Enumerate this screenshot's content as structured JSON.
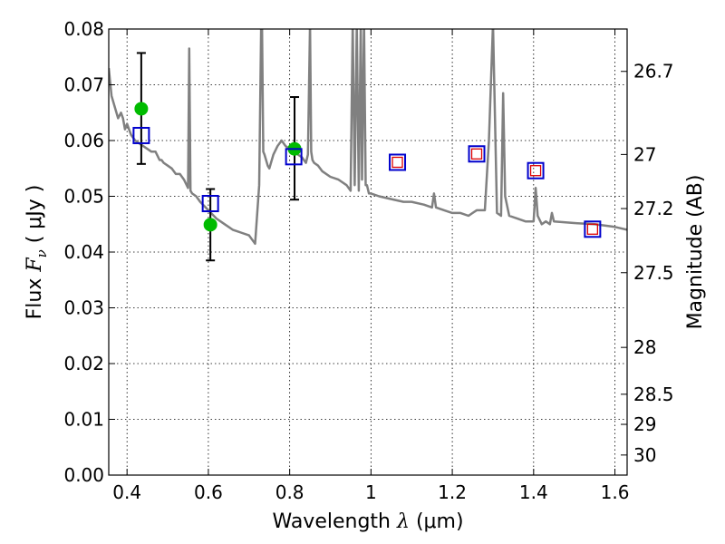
{
  "chart_data": {
    "type": "line",
    "xlabel_text": "Wavelength",
    "xlabel_symbol": "λ",
    "xlabel_unit": "(μm)",
    "ylabel_text": "Flux",
    "ylabel_symbol": "F",
    "ylabel_subscript": "ν",
    "ylabel_unit": "( μJy )",
    "ylabel_right": "Magnitude (AB)",
    "xlim": [
      0.355,
      1.63
    ],
    "ylim": [
      0.0,
      0.08
    ],
    "grid": true,
    "x_ticks": [
      0.4,
      0.6,
      0.8,
      1.0,
      1.2,
      1.4,
      1.6
    ],
    "x_tick_labels": [
      "0.4",
      "0.6",
      "0.8",
      "1",
      "1.2",
      "1.4",
      "1.6"
    ],
    "y_ticks": [
      0.0,
      0.01,
      0.02,
      0.03,
      0.04,
      0.05,
      0.06,
      0.07,
      0.08
    ],
    "y_tick_labels": [
      "0.00",
      "0.01",
      "0.02",
      "0.03",
      "0.04",
      "0.05",
      "0.06",
      "0.07",
      "0.08"
    ],
    "right_ticks": [
      {
        "flux": 0.0724,
        "label": "26.7"
      },
      {
        "flux": 0.0575,
        "label": "27"
      },
      {
        "flux": 0.0478,
        "label": "27.2"
      },
      {
        "flux": 0.0363,
        "label": "27.5"
      },
      {
        "flux": 0.0229,
        "label": "28"
      },
      {
        "flux": 0.0145,
        "label": "28.5"
      },
      {
        "flux": 0.0091,
        "label": "29"
      },
      {
        "flux": 0.0036,
        "label": "30"
      }
    ],
    "colors": {
      "sed": "#808080",
      "observed": "#00bb00",
      "model_box": "#0000cc",
      "model_inner": "#dd0000",
      "error": "#000000"
    },
    "series": [
      {
        "kind": "sed",
        "x": [
          0.355,
          0.362,
          0.37,
          0.378,
          0.385,
          0.39,
          0.395,
          0.4,
          0.405,
          0.41,
          0.42,
          0.43,
          0.44,
          0.45,
          0.46,
          0.47,
          0.48,
          0.485,
          0.49,
          0.5,
          0.51,
          0.52,
          0.53,
          0.54,
          0.55,
          0.553,
          0.556,
          0.56,
          0.57,
          0.58,
          0.6,
          0.62,
          0.64,
          0.66,
          0.68,
          0.7,
          0.715,
          0.725,
          0.73,
          0.732,
          0.735,
          0.738,
          0.742,
          0.746,
          0.75,
          0.76,
          0.77,
          0.78,
          0.79,
          0.8,
          0.81,
          0.82,
          0.83,
          0.84,
          0.845,
          0.85,
          0.853,
          0.856,
          0.86,
          0.87,
          0.88,
          0.9,
          0.92,
          0.94,
          0.95,
          0.955,
          0.96,
          0.965,
          0.97,
          0.975,
          0.978,
          0.983,
          0.987,
          0.99,
          0.995,
          1.0,
          1.02,
          1.05,
          1.08,
          1.1,
          1.13,
          1.15,
          1.155,
          1.16,
          1.18,
          1.2,
          1.22,
          1.24,
          1.25,
          1.26,
          1.28,
          1.29,
          1.3,
          1.31,
          1.32,
          1.325,
          1.33,
          1.34,
          1.36,
          1.38,
          1.4,
          1.405,
          1.41,
          1.42,
          1.43,
          1.44,
          1.445,
          1.45,
          1.5,
          1.55,
          1.6,
          1.63
        ],
        "y": [
          0.073,
          0.068,
          0.066,
          0.064,
          0.065,
          0.064,
          0.062,
          0.063,
          0.062,
          0.061,
          0.06,
          0.0595,
          0.059,
          0.0585,
          0.058,
          0.058,
          0.0565,
          0.0565,
          0.056,
          0.0555,
          0.055,
          0.054,
          0.054,
          0.053,
          0.0515,
          0.0765,
          0.051,
          0.0505,
          0.05,
          0.049,
          0.0475,
          0.046,
          0.045,
          0.044,
          0.0435,
          0.043,
          0.0415,
          0.052,
          0.081,
          0.081,
          0.058,
          0.0575,
          0.0565,
          0.0555,
          0.055,
          0.0575,
          0.059,
          0.06,
          0.059,
          0.0585,
          0.058,
          0.0575,
          0.057,
          0.056,
          0.0575,
          0.081,
          0.058,
          0.0565,
          0.056,
          0.0555,
          0.0545,
          0.0535,
          0.053,
          0.052,
          0.051,
          0.081,
          0.052,
          0.081,
          0.051,
          0.081,
          0.053,
          0.081,
          0.052,
          0.052,
          0.0505,
          0.0505,
          0.05,
          0.0495,
          0.049,
          0.049,
          0.0485,
          0.048,
          0.0505,
          0.048,
          0.0475,
          0.047,
          0.047,
          0.0465,
          0.047,
          0.0475,
          0.0475,
          0.06,
          0.081,
          0.047,
          0.0465,
          0.0685,
          0.05,
          0.0465,
          0.046,
          0.0455,
          0.0455,
          0.0515,
          0.0465,
          0.045,
          0.0455,
          0.045,
          0.047,
          0.0455,
          0.0452,
          0.045,
          0.0445,
          0.044
        ]
      },
      {
        "kind": "observed",
        "x": [
          0.435,
          0.605,
          0.812
        ],
        "y": [
          0.0657,
          0.0449,
          0.0585
        ],
        "err_low": [
          0.0558,
          0.0385,
          0.0494
        ],
        "err_high": [
          0.0757,
          0.0513,
          0.0678
        ]
      },
      {
        "kind": "model",
        "x": [
          0.435,
          0.605,
          0.81,
          1.065,
          1.26,
          1.405,
          1.545
        ],
        "y": [
          0.0609,
          0.0487,
          0.0571,
          0.0561,
          0.0576,
          0.0546,
          0.0441
        ],
        "inner": [
          false,
          false,
          false,
          true,
          true,
          true,
          true
        ]
      }
    ]
  }
}
